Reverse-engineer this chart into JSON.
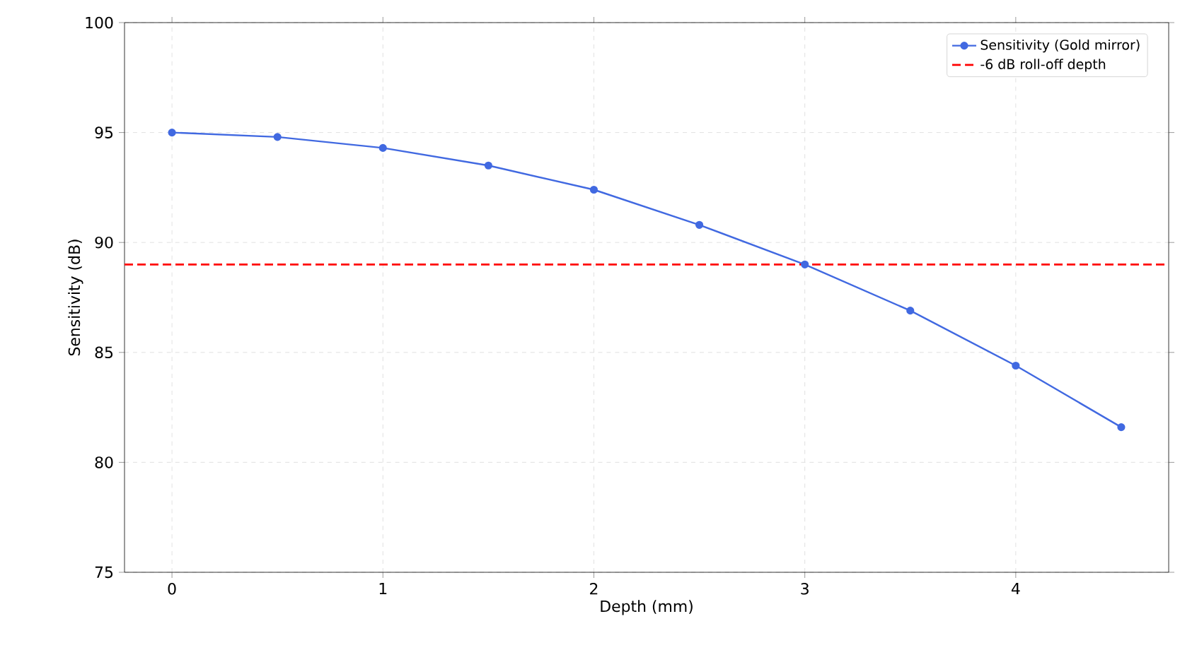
{
  "chart_data": {
    "type": "line",
    "xlabel": "Depth (mm)",
    "ylabel": "Sensitivity (dB)",
    "x": [
      0,
      0.5,
      1,
      1.5,
      2,
      2.5,
      3,
      3.5,
      4,
      4.5
    ],
    "series": [
      {
        "name": "Sensitivity (Gold mirror)",
        "color": "#4169e1",
        "values": [
          95,
          94.8,
          94.3,
          93.5,
          92.4,
          90.8,
          89.0,
          86.9,
          84.4,
          81.6
        ]
      }
    ],
    "ref_lines": [
      {
        "axis": "y",
        "value": 89,
        "label": "-6 dB roll-off depth",
        "color": "#ff0000",
        "line_style": "dashed"
      }
    ],
    "xlim": [
      -0.225,
      4.725
    ],
    "ylim": [
      75,
      100
    ],
    "xticks": [
      0,
      1,
      2,
      3,
      4
    ],
    "yticks": [
      75,
      80,
      85,
      90,
      95,
      100
    ],
    "grid": true,
    "legend": "top right",
    "marker": "circle",
    "line_style": "solid"
  }
}
